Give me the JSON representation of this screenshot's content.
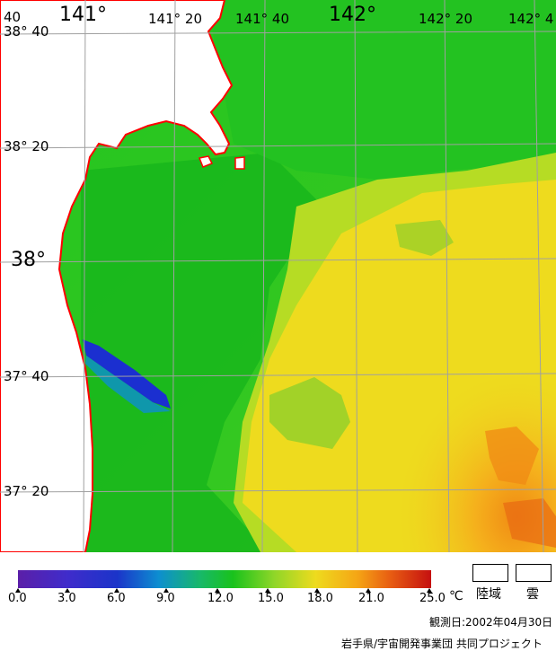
{
  "map": {
    "longitude_labels": [
      "141°",
      "141° 20",
      "141° 40",
      "142°",
      "142° 20",
      "142° 4"
    ],
    "latitude_labels": [
      "38° 40",
      "38° 20",
      "38°",
      "37° 40",
      "37° 20"
    ],
    "corner_label": "40"
  },
  "legend": {
    "ticks": [
      "0.0",
      "3.0",
      "6.0",
      "9.0",
      "12.0",
      "15.0",
      "18.0",
      "21.0",
      "25.0"
    ],
    "unit": "℃",
    "land_label": "陸域",
    "cloud_label": "雲",
    "colors": [
      "#5b1fa8",
      "#3f2ccb",
      "#1b34c9",
      "#0d8ed0",
      "#18b86a",
      "#19c21c",
      "#8fd628",
      "#eedb1e",
      "#f5a615",
      "#e85e12",
      "#c51010"
    ]
  },
  "footer": {
    "date": "観測日:2002年04月30日",
    "credit": "岩手県/宇宙開発事業団 共同プロジェクト"
  },
  "colors": {
    "coast": "#ff0000",
    "grid": "#a0a0a0",
    "land": "#ffffff"
  }
}
